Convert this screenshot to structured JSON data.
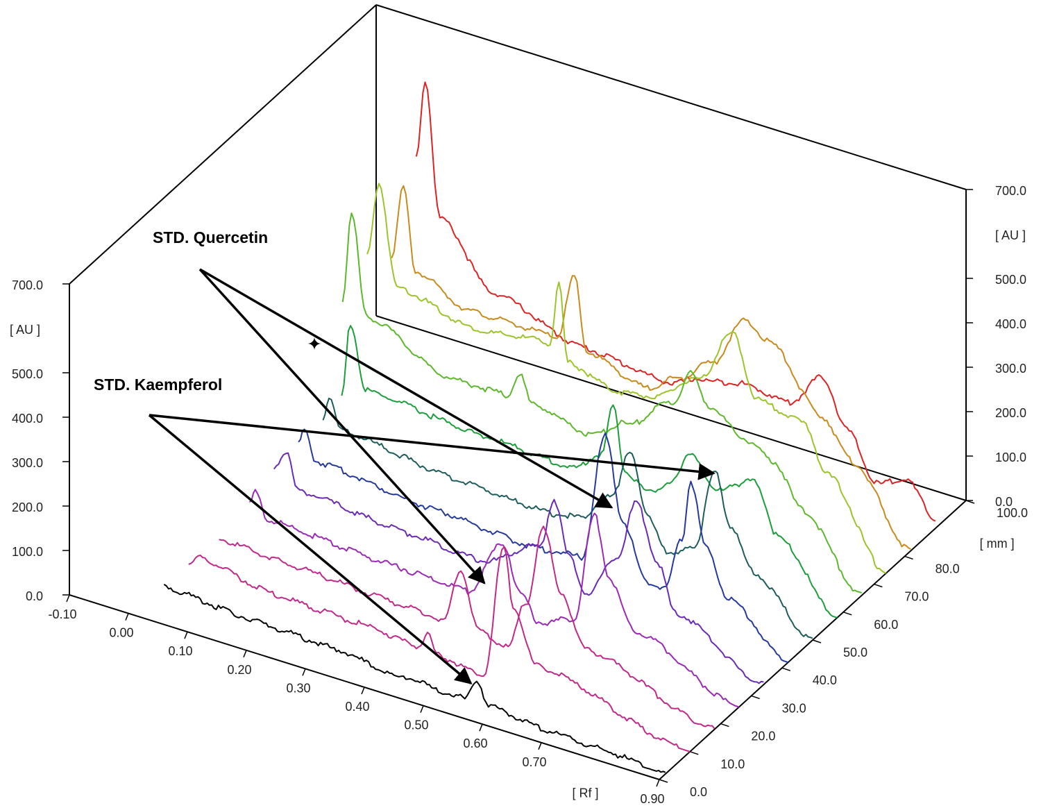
{
  "chart_data": {
    "type": "line",
    "subtype": "3d-densitogram",
    "axes": {
      "rf": {
        "label": "[ Rf ]",
        "range": [
          -0.1,
          0.9
        ],
        "ticks": [
          "-0.10",
          "0.00",
          "0.10",
          "0.20",
          "0.30",
          "0.40",
          "0.50",
          "0.60",
          "0.70",
          "0.90"
        ]
      },
      "track_position": {
        "label": "[ mm ]",
        "range": [
          0.0,
          100.0
        ],
        "ticks": [
          "0.0",
          "10.0",
          "20.0",
          "30.0",
          "40.0",
          "50.0",
          "60.0",
          "70.0",
          "80.0",
          "100.0"
        ]
      },
      "au_left": {
        "label": "[ AU ]",
        "range": [
          0,
          700
        ],
        "ticks": [
          "0.0",
          "100.0",
          "200.0",
          "300.0",
          "400.0",
          "500.0",
          "700.0"
        ]
      },
      "au_right": {
        "label": "[ AU ]",
        "range": [
          0,
          700
        ],
        "ticks": [
          "0.0",
          "100.0",
          "200.0",
          "300.0",
          "400.0",
          "500.0",
          "700.0"
        ]
      }
    },
    "grid": false,
    "legend": "none",
    "annotations": [
      {
        "text": "STD. Quercetin",
        "targets": [
          {
            "rf": 0.515,
            "track_mm": 58.5,
            "au": 85
          },
          {
            "rf": 0.45,
            "track_mm": 29.5,
            "au": 70
          }
        ]
      },
      {
        "text": "STD. Kaempferol",
        "targets": [
          {
            "rf": 0.735,
            "track_mm": 49.5,
            "au": 310
          },
          {
            "rf": 0.56,
            "track_mm": 4,
            "au": 50
          }
        ]
      }
    ],
    "series": [
      {
        "color": "#000000",
        "track_mm": 2,
        "points": [
          [
            0.05,
            70
          ],
          [
            0.2,
            55
          ],
          [
            0.35,
            48
          ],
          [
            0.44,
            30
          ],
          [
            0.48,
            38
          ],
          [
            0.5,
            28
          ],
          [
            0.56,
            28
          ],
          [
            0.58,
            80
          ],
          [
            0.6,
            30
          ],
          [
            0.7,
            15
          ],
          [
            0.8,
            10
          ],
          [
            0.9,
            0
          ]
        ]
      },
      {
        "color": "#c0288a",
        "track_mm": 10,
        "points": [
          [
            0.05,
            70
          ],
          [
            0.07,
            90
          ],
          [
            0.2,
            60
          ],
          [
            0.35,
            55
          ],
          [
            0.44,
            45
          ],
          [
            0.455,
            80
          ],
          [
            0.47,
            40
          ],
          [
            0.55,
            25
          ],
          [
            0.585,
            330
          ],
          [
            0.6,
            200
          ],
          [
            0.64,
            85
          ],
          [
            0.9,
            0
          ]
        ]
      },
      {
        "color": "#c0288a",
        "track_mm": 18,
        "points": [
          [
            0.06,
            80
          ],
          [
            0.2,
            70
          ],
          [
            0.35,
            60
          ],
          [
            0.44,
            55
          ],
          [
            0.47,
            180
          ],
          [
            0.5,
            55
          ],
          [
            0.55,
            40
          ],
          [
            0.58,
            150
          ],
          [
            0.61,
            330
          ],
          [
            0.64,
            200
          ],
          [
            0.68,
            90
          ],
          [
            0.9,
            0
          ]
        ]
      },
      {
        "color": "#9a2ab4",
        "track_mm": 26,
        "points": [
          [
            0.07,
            110
          ],
          [
            0.08,
            145
          ],
          [
            0.1,
            90
          ],
          [
            0.3,
            75
          ],
          [
            0.44,
            70
          ],
          [
            0.5,
            200
          ],
          [
            0.53,
            100
          ],
          [
            0.56,
            50
          ],
          [
            0.62,
            80
          ],
          [
            0.655,
            330
          ],
          [
            0.68,
            200
          ],
          [
            0.72,
            100
          ],
          [
            0.9,
            0
          ]
        ]
      },
      {
        "color": "#6a2ab4",
        "track_mm": 34,
        "points": [
          [
            0.07,
            145
          ],
          [
            0.09,
            190
          ],
          [
            0.11,
            110
          ],
          [
            0.3,
            90
          ],
          [
            0.42,
            80
          ],
          [
            0.52,
            150
          ],
          [
            0.545,
            270
          ],
          [
            0.57,
            150
          ],
          [
            0.6,
            80
          ],
          [
            0.65,
            180
          ],
          [
            0.685,
            320
          ],
          [
            0.72,
            200
          ],
          [
            0.75,
            100
          ],
          [
            0.9,
            0
          ]
        ]
      },
      {
        "color": "#233a9c",
        "track_mm": 42,
        "points": [
          [
            0.07,
            150
          ],
          [
            0.08,
            180
          ],
          [
            0.1,
            120
          ],
          [
            0.3,
            95
          ],
          [
            0.46,
            80
          ],
          [
            0.55,
            90
          ],
          [
            0.59,
            380
          ],
          [
            0.62,
            200
          ],
          [
            0.66,
            80
          ],
          [
            0.69,
            80
          ],
          [
            0.72,
            200
          ],
          [
            0.735,
            340
          ],
          [
            0.76,
            200
          ],
          [
            0.8,
            100
          ],
          [
            0.9,
            0
          ]
        ]
      },
      {
        "color": "#1d5c5c",
        "track_mm": 50,
        "points": [
          [
            0.07,
            150
          ],
          [
            0.08,
            210
          ],
          [
            0.1,
            140
          ],
          [
            0.3,
            110
          ],
          [
            0.45,
            100
          ],
          [
            0.5,
            110
          ],
          [
            0.56,
            180
          ],
          [
            0.59,
            300
          ],
          [
            0.62,
            160
          ],
          [
            0.66,
            90
          ],
          [
            0.7,
            130
          ],
          [
            0.735,
            310
          ],
          [
            0.76,
            200
          ],
          [
            0.8,
            110
          ],
          [
            0.9,
            0
          ]
        ]
      },
      {
        "color": "#1a9e3a",
        "track_mm": 58,
        "points": [
          [
            0.06,
            150
          ],
          [
            0.075,
            320
          ],
          [
            0.1,
            180
          ],
          [
            0.3,
            160
          ],
          [
            0.45,
            150
          ],
          [
            0.5,
            200
          ],
          [
            0.52,
            320
          ],
          [
            0.54,
            180
          ],
          [
            0.58,
            150
          ],
          [
            0.62,
            190
          ],
          [
            0.655,
            270
          ],
          [
            0.69,
            200
          ],
          [
            0.73,
            230
          ],
          [
            0.76,
            250
          ],
          [
            0.8,
            140
          ],
          [
            0.9,
            0
          ]
        ]
      },
      {
        "color": "#5cb82a",
        "track_mm": 66,
        "points": [
          [
            0.02,
            300
          ],
          [
            0.035,
            500
          ],
          [
            0.06,
            280
          ],
          [
            0.2,
            200
          ],
          [
            0.3,
            200
          ],
          [
            0.32,
            260
          ],
          [
            0.34,
            200
          ],
          [
            0.44,
            170
          ],
          [
            0.5,
            220
          ],
          [
            0.58,
            300
          ],
          [
            0.61,
            380
          ],
          [
            0.64,
            320
          ],
          [
            0.7,
            270
          ],
          [
            0.75,
            240
          ],
          [
            0.8,
            150
          ],
          [
            0.9,
            0
          ]
        ]
      },
      {
        "color": "#9bc428",
        "track_mm": 74,
        "points": [
          [
            0.02,
            350
          ],
          [
            0.04,
            520
          ],
          [
            0.07,
            300
          ],
          [
            0.2,
            260
          ],
          [
            0.33,
            280
          ],
          [
            0.345,
            420
          ],
          [
            0.36,
            250
          ],
          [
            0.44,
            220
          ],
          [
            0.5,
            230
          ],
          [
            0.58,
            300
          ],
          [
            0.64,
            430
          ],
          [
            0.68,
            300
          ],
          [
            0.76,
            280
          ],
          [
            0.8,
            180
          ],
          [
            0.9,
            0
          ]
        ]
      },
      {
        "color": "#c88a1a",
        "track_mm": 82,
        "points": [
          [
            0.02,
            300
          ],
          [
            0.04,
            460
          ],
          [
            0.06,
            280
          ],
          [
            0.15,
            230
          ],
          [
            0.3,
            230
          ],
          [
            0.33,
            380
          ],
          [
            0.35,
            220
          ],
          [
            0.45,
            180
          ],
          [
            0.5,
            220
          ],
          [
            0.56,
            280
          ],
          [
            0.62,
            400
          ],
          [
            0.66,
            370
          ],
          [
            0.75,
            240
          ],
          [
            0.8,
            160
          ],
          [
            0.9,
            0
          ]
        ]
      },
      {
        "color": "#dd2222",
        "track_mm": 90,
        "points": [
          [
            0.02,
            470
          ],
          [
            0.035,
            650
          ],
          [
            0.06,
            350
          ],
          [
            0.15,
            220
          ],
          [
            0.3,
            160
          ],
          [
            0.45,
            140
          ],
          [
            0.5,
            170
          ],
          [
            0.58,
            190
          ],
          [
            0.65,
            180
          ],
          [
            0.71,
            260
          ],
          [
            0.75,
            160
          ],
          [
            0.8,
            60
          ],
          [
            0.85,
            90
          ],
          [
            0.9,
            20
          ]
        ]
      }
    ]
  }
}
